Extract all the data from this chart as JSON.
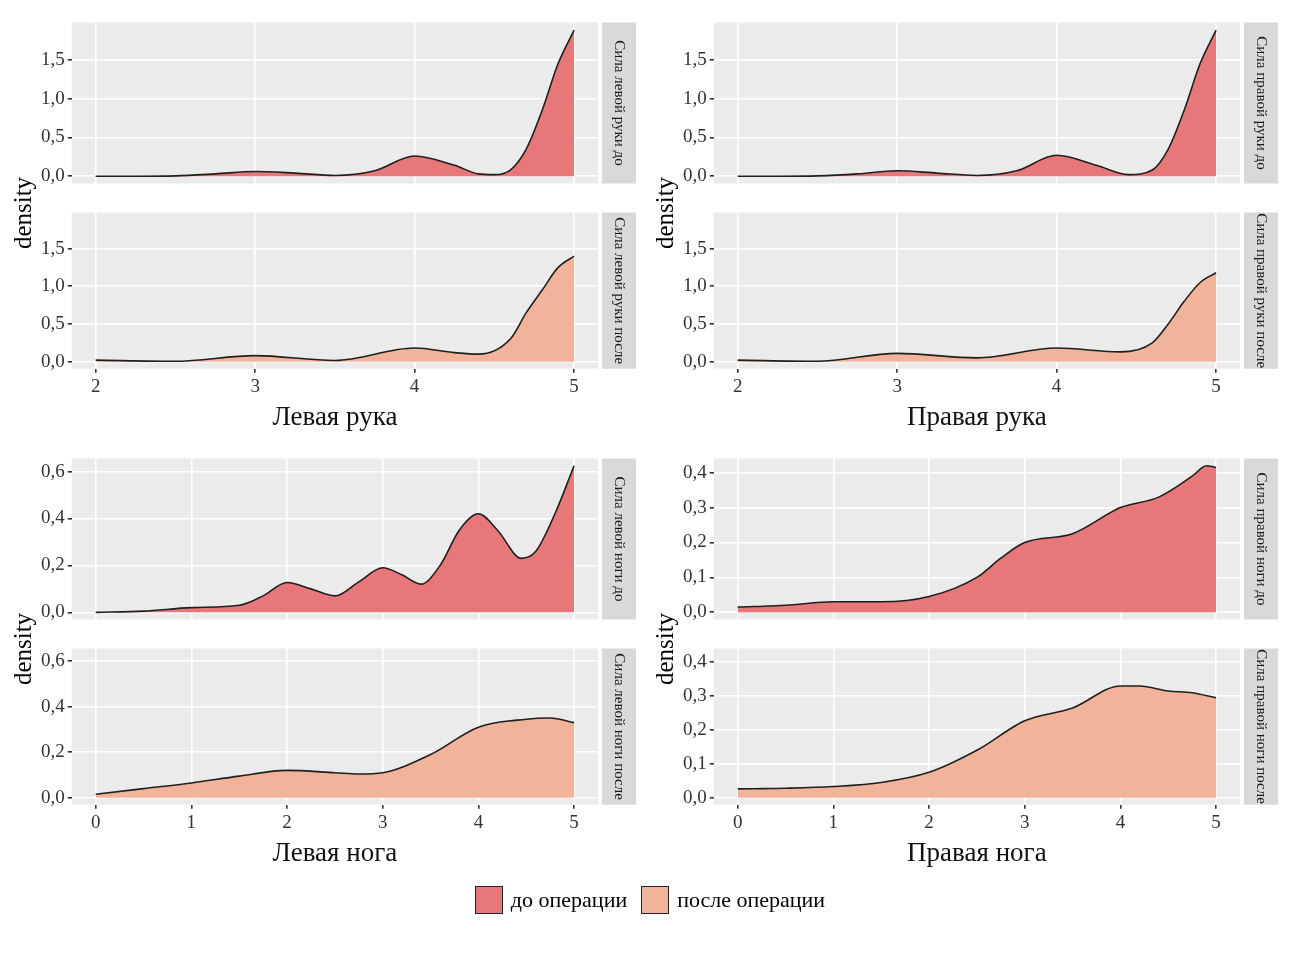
{
  "chart_data": [
    {
      "type": "area",
      "y2label": "Сила левой руки до",
      "ylabel": "density",
      "tick_labels": "y",
      "legend": "bottom",
      "grid": true,
      "xlim": [
        1.85,
        5.15
      ],
      "xticks": [
        2,
        3,
        4,
        5
      ],
      "ylim": [
        -0.095,
        1.98
      ],
      "yticks": [
        {
          "value": 0,
          "label": "0,0"
        },
        {
          "value": 0.5,
          "label": "0,5"
        },
        {
          "value": 1,
          "label": "1,0"
        },
        {
          "value": 1.5,
          "label": "1,5"
        }
      ],
      "series": [
        {
          "name": "до операции",
          "color": "#e8777a",
          "x": [
            2,
            2.25,
            2.5,
            2.75,
            3,
            3.25,
            3.5,
            3.75,
            4,
            4.25,
            4.4,
            4.5,
            4.6,
            4.7,
            4.8,
            4.9,
            5
          ],
          "values": [
            0,
            0,
            0.005,
            0.03,
            0.06,
            0.04,
            0.01,
            0.07,
            0.26,
            0.14,
            0.03,
            0.02,
            0.08,
            0.35,
            0.85,
            1.45,
            1.88
          ]
        }
      ]
    },
    {
      "type": "area",
      "y2label": "Сила левой руки после",
      "xlabel": "Левая рука",
      "legend": "bottom",
      "grid": true,
      "xlim": [
        1.85,
        5.15
      ],
      "xticks": [
        2,
        3,
        4,
        5
      ],
      "ylim": [
        -0.095,
        1.98
      ],
      "yticks": [
        {
          "value": 0,
          "label": "0,0"
        },
        {
          "value": 0.5,
          "label": "0,5"
        },
        {
          "value": 1,
          "label": "1,0"
        },
        {
          "value": 1.5,
          "label": "1,5"
        }
      ],
      "series": [
        {
          "name": "после операции",
          "color": "#f1b49b",
          "x": [
            2,
            2.5,
            3,
            3.5,
            4,
            4.25,
            4.4,
            4.6,
            4.7,
            4.8,
            4.9,
            5
          ],
          "values": [
            0.02,
            0.005,
            0.08,
            0.015,
            0.18,
            0.12,
            0.1,
            0.3,
            0.65,
            0.95,
            1.25,
            1.4
          ]
        }
      ]
    },
    {
      "type": "area",
      "y2label": "Сила правой руки до",
      "ylabel": "density",
      "tick_labels": "y",
      "grid": true,
      "xlim": [
        1.85,
        5.15
      ],
      "xticks": [
        2,
        3,
        4,
        5
      ],
      "ylim": [
        -0.095,
        1.98
      ],
      "yticks": [
        {
          "value": 0,
          "label": "0,0"
        },
        {
          "value": 0.5,
          "label": "0,5"
        },
        {
          "value": 1,
          "label": "1,0"
        },
        {
          "value": 1.5,
          "label": "1,5"
        }
      ],
      "series": [
        {
          "color": "#e8777a",
          "x": [
            2,
            2.25,
            2.5,
            2.75,
            3,
            3.25,
            3.5,
            3.75,
            4,
            4.25,
            4.45,
            4.6,
            4.7,
            4.8,
            4.9,
            5
          ],
          "values": [
            0,
            0,
            0.005,
            0.03,
            0.07,
            0.04,
            0.01,
            0.07,
            0.27,
            0.14,
            0.02,
            0.08,
            0.35,
            0.85,
            1.45,
            1.88
          ]
        }
      ]
    },
    {
      "type": "area",
      "y2label": "Сила правой руки после",
      "xlabel": "Правая рука",
      "grid": true,
      "xlim": [
        1.85,
        5.15
      ],
      "xticks": [
        2,
        3,
        4,
        5
      ],
      "ylim": [
        -0.095,
        1.98
      ],
      "yticks": [
        {
          "value": 0,
          "label": "0,0"
        },
        {
          "value": 0.5,
          "label": "0,5"
        },
        {
          "value": 1,
          "label": "1,0"
        },
        {
          "value": 1.5,
          "label": "1,5"
        }
      ],
      "series": [
        {
          "color": "#f1b49b",
          "x": [
            2,
            2.5,
            3,
            3.5,
            4,
            4.4,
            4.6,
            4.7,
            4.8,
            4.9,
            5
          ],
          "values": [
            0.02,
            0.005,
            0.11,
            0.05,
            0.18,
            0.13,
            0.25,
            0.5,
            0.8,
            1.05,
            1.18
          ]
        }
      ]
    },
    {
      "type": "area",
      "y2label": "Сила левой ноги до",
      "ylabel": "density",
      "tick_labels": "y",
      "grid": true,
      "xlim": [
        -0.25,
        5.25
      ],
      "xticks": [
        0,
        1,
        2,
        3,
        4,
        5
      ],
      "ylim": [
        -0.031,
        0.656
      ],
      "yticks": [
        {
          "value": 0,
          "label": "0,0"
        },
        {
          "value": 0.2,
          "label": "0,2"
        },
        {
          "value": 0.4,
          "label": "0,4"
        },
        {
          "value": 0.6,
          "label": "0,6"
        }
      ],
      "series": [
        {
          "color": "#e8777a",
          "x": [
            0,
            0.5,
            1,
            1.5,
            1.75,
            2,
            2.25,
            2.5,
            2.75,
            3,
            3.2,
            3.4,
            3.6,
            3.8,
            4,
            4.2,
            4.45,
            4.6,
            4.8,
            5
          ],
          "values": [
            0,
            0.005,
            0.02,
            0.03,
            0.07,
            0.127,
            0.1,
            0.07,
            0.13,
            0.19,
            0.16,
            0.12,
            0.2,
            0.35,
            0.42,
            0.35,
            0.23,
            0.26,
            0.42,
            0.625
          ]
        }
      ]
    },
    {
      "type": "area",
      "y2label": "Сила левой ноги после",
      "xlabel": "Левая нога",
      "grid": true,
      "xlim": [
        -0.25,
        5.25
      ],
      "xticks": [
        0,
        1,
        2,
        3,
        4,
        5
      ],
      "ylim": [
        -0.031,
        0.656
      ],
      "yticks": [
        {
          "value": 0,
          "label": "0,0"
        },
        {
          "value": 0.2,
          "label": "0,2"
        },
        {
          "value": 0.4,
          "label": "0,4"
        },
        {
          "value": 0.6,
          "label": "0,6"
        }
      ],
      "series": [
        {
          "color": "#f1b49b",
          "x": [
            0,
            0.5,
            1,
            1.5,
            2,
            2.5,
            2.75,
            3,
            3.5,
            4,
            4.5,
            4.75,
            5
          ],
          "values": [
            0.015,
            0.04,
            0.065,
            0.095,
            0.12,
            0.11,
            0.104,
            0.11,
            0.19,
            0.31,
            0.345,
            0.35,
            0.33
          ]
        }
      ]
    },
    {
      "type": "area",
      "y2label": "Сила правой ноги до",
      "ylabel": "density",
      "tick_labels": "y",
      "grid": true,
      "xlim": [
        -0.25,
        5.25
      ],
      "xticks": [
        0,
        1,
        2,
        3,
        4,
        5
      ],
      "ylim": [
        -0.021,
        0.441
      ],
      "yticks": [
        {
          "value": 0,
          "label": "0,0"
        },
        {
          "value": 0.1,
          "label": "0,1"
        },
        {
          "value": 0.2,
          "label": "0,2"
        },
        {
          "value": 0.3,
          "label": "0,3"
        },
        {
          "value": 0.4,
          "label": "0,4"
        }
      ],
      "series": [
        {
          "color": "#e8777a",
          "x": [
            0,
            0.5,
            1,
            1.5,
            2,
            2.5,
            2.75,
            3,
            3.5,
            4,
            4.4,
            4.75,
            4.9,
            5
          ],
          "values": [
            0.015,
            0.02,
            0.03,
            0.03,
            0.045,
            0.1,
            0.155,
            0.2,
            0.225,
            0.3,
            0.33,
            0.39,
            0.42,
            0.415
          ]
        }
      ]
    },
    {
      "type": "area",
      "y2label": "Сила правой ноги после",
      "xlabel": "Правая нога",
      "grid": true,
      "xlim": [
        -0.25,
        5.25
      ],
      "xticks": [
        0,
        1,
        2,
        3,
        4,
        5
      ],
      "ylim": [
        -0.021,
        0.441
      ],
      "yticks": [
        {
          "value": 0,
          "label": "0,0"
        },
        {
          "value": 0.1,
          "label": "0,1"
        },
        {
          "value": 0.2,
          "label": "0,2"
        },
        {
          "value": 0.3,
          "label": "0,3"
        },
        {
          "value": 0.4,
          "label": "0,4"
        }
      ],
      "series": [
        {
          "color": "#f1b49b",
          "x": [
            0,
            0.5,
            1,
            1.5,
            2,
            2.5,
            3,
            3.5,
            4,
            4.2,
            4.5,
            4.75,
            5
          ],
          "values": [
            0.026,
            0.028,
            0.033,
            0.045,
            0.075,
            0.14,
            0.227,
            0.265,
            0.33,
            0.33,
            0.315,
            0.31,
            0.295
          ]
        }
      ]
    }
  ]
}
